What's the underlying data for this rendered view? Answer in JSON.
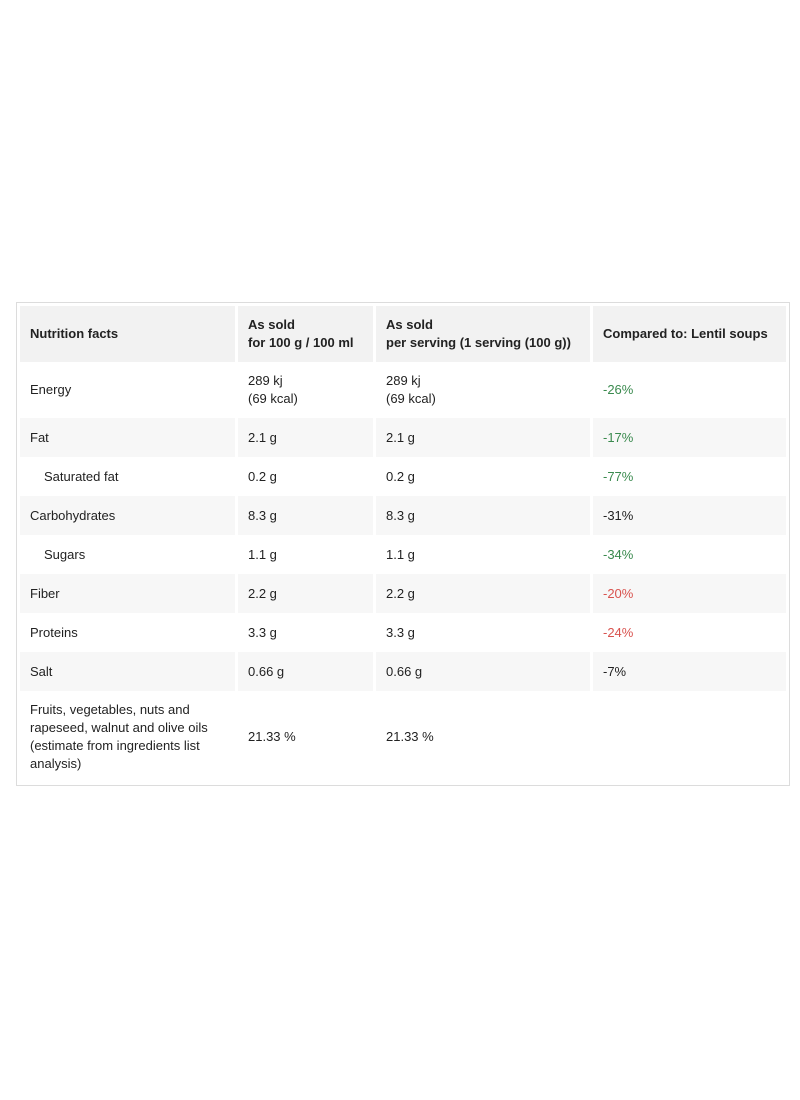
{
  "table": {
    "headers": [
      {
        "line1": "Nutrition facts",
        "line2": ""
      },
      {
        "line1": "As sold",
        "line2": "for 100 g / 100 ml"
      },
      {
        "line1": "As sold",
        "line2": "per serving (1 serving (100 g))"
      },
      {
        "line1": "Compared to: Lentil soups",
        "line2": ""
      }
    ],
    "rows": [
      {
        "name": "Energy",
        "per100_line1": "289 kj",
        "per100_line2": "(69 kcal)",
        "serving_line1": "289 kj",
        "serving_line2": "(69 kcal)",
        "compare": "-26%",
        "compare_color": "#3a8a4e"
      },
      {
        "name": "Fat",
        "per100_line1": "2.1 g",
        "serving_line1": "2.1 g",
        "compare": "-17%",
        "compare_color": "#3a8a4e"
      },
      {
        "name": "Saturated fat",
        "per100_line1": "0.2 g",
        "serving_line1": "0.2 g",
        "compare": "-77%",
        "compare_color": "#3a8a4e"
      },
      {
        "name": "Carbohydrates",
        "per100_line1": "8.3 g",
        "serving_line1": "8.3 g",
        "compare": "-31%",
        "compare_color": "#222222"
      },
      {
        "name": "Sugars",
        "per100_line1": "1.1 g",
        "serving_line1": "1.1 g",
        "compare": "-34%",
        "compare_color": "#3a8a4e"
      },
      {
        "name": "Fiber",
        "per100_line1": "2.2 g",
        "serving_line1": "2.2 g",
        "compare": "-20%",
        "compare_color": "#d9534f"
      },
      {
        "name": "Proteins",
        "per100_line1": "3.3 g",
        "serving_line1": "3.3 g",
        "compare": "-24%",
        "compare_color": "#d9534f"
      },
      {
        "name": "Salt",
        "per100_line1": "0.66 g",
        "serving_line1": "0.66 g",
        "compare": "-7%",
        "compare_color": "#222222"
      },
      {
        "name": "Fruits, vegetables, nuts and rapeseed, walnut and olive oils (estimate from ingredients list analysis)",
        "per100_line1": "21.33 %",
        "serving_line1": "21.33 %",
        "compare": "",
        "compare_color": "#222222"
      }
    ]
  }
}
